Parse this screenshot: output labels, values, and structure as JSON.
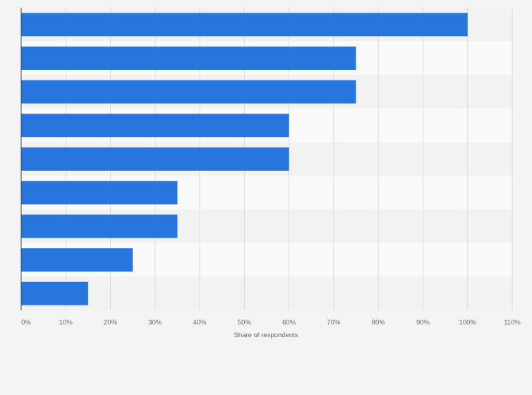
{
  "chart_data": {
    "type": "bar",
    "orientation": "horizontal",
    "categories": [
      "",
      "",
      "",
      "",
      "",
      "",
      "",
      "",
      ""
    ],
    "values": [
      100,
      75,
      75,
      60,
      60,
      35,
      35,
      25,
      15
    ],
    "xlabel": "Share of respondents",
    "xlim": [
      0,
      110
    ],
    "x_ticks": [
      "0%",
      "10%",
      "20%",
      "30%",
      "40%",
      "50%",
      "60%",
      "70%",
      "80%",
      "90%",
      "100%",
      "110%"
    ],
    "grid": true,
    "colors": {
      "bar": "#2876dd",
      "band_dark": "#f2f2f2",
      "band_light": "#fafafa",
      "gridline": "#dcdcdc",
      "axis": "#444444"
    }
  }
}
